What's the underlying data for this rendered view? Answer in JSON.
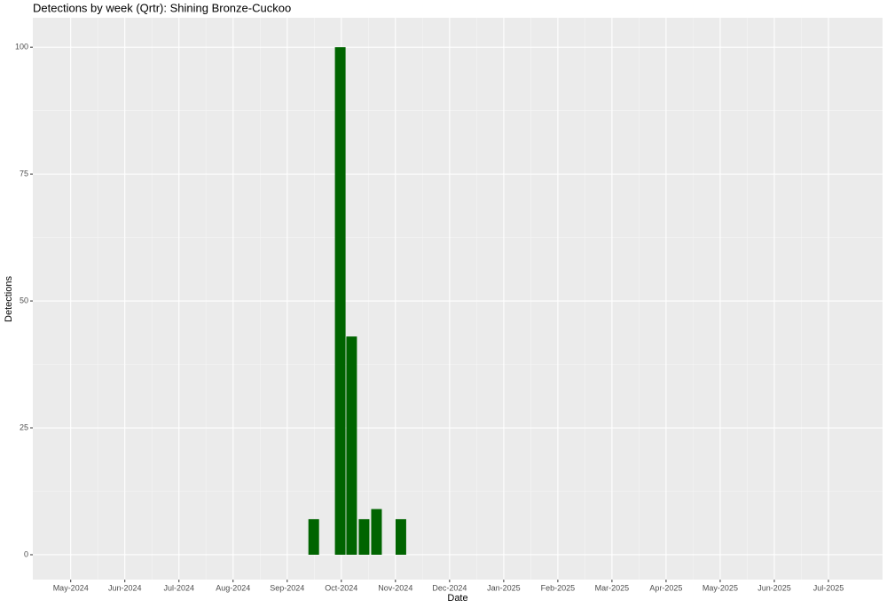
{
  "chart_data": {
    "type": "bar",
    "title": "Detections by week (Qrtr): Shining Bronze-Cuckoo",
    "x_label": "Date",
    "y_label": "Detections",
    "x": [
      9.49,
      9.98,
      10.19,
      10.42,
      10.65,
      11.1
    ],
    "values": [
      7,
      100,
      43,
      7,
      9,
      7
    ],
    "color": "#006400",
    "xlim": [
      4.3,
      20.0
    ],
    "xticks": [
      {
        "value": 5,
        "label": "May-2024"
      },
      {
        "value": 6,
        "label": "Jun-2024"
      },
      {
        "value": 7,
        "label": "Jul-2024"
      },
      {
        "value": 8,
        "label": "Aug-2024"
      },
      {
        "value": 9,
        "label": "Sep-2024"
      },
      {
        "value": 10,
        "label": "Oct-2024"
      },
      {
        "value": 11,
        "label": "Nov-2024"
      },
      {
        "value": 12,
        "label": "Dec-2024"
      },
      {
        "value": 13,
        "label": "Jan-2025"
      },
      {
        "value": 14,
        "label": "Feb-2025"
      },
      {
        "value": 15,
        "label": "Mar-2025"
      },
      {
        "value": 16,
        "label": "Apr-2025"
      },
      {
        "value": 17,
        "label": "May-2025"
      },
      {
        "value": 18,
        "label": "Jun-2025"
      },
      {
        "value": 19,
        "label": "Jul-2025"
      }
    ],
    "ylim": [
      -4.9,
      105.8
    ],
    "yticks": [
      0,
      25,
      50,
      75,
      100
    ],
    "grid": true
  }
}
